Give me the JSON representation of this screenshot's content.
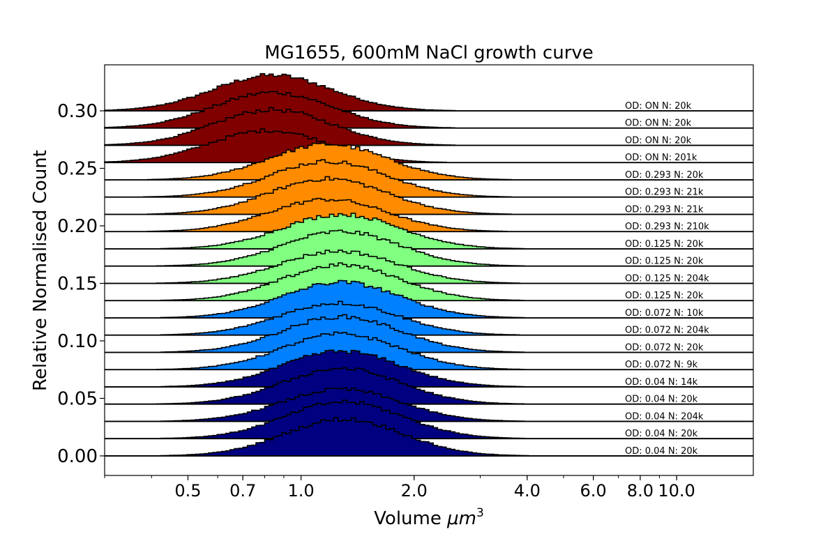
{
  "chart_data": {
    "type": "area",
    "title": "MG1655, 600mM NaCl growth curve",
    "xlabel": "Volume ",
    "xlabel_math": "μm",
    "xlabel_exp": "3",
    "ylabel": "Relative Normalised Count",
    "x_scale": "log",
    "xlim": [
      0.3,
      16
    ],
    "ylim": [
      -0.017,
      0.34
    ],
    "xticks": [
      {
        "value": 0.5,
        "label": "0.5"
      },
      {
        "value": 0.7,
        "label": "0.7"
      },
      {
        "value": 1.0,
        "label": "1.0"
      },
      {
        "value": 2.0,
        "label": "2.0"
      },
      {
        "value": 4.0,
        "label": "4.0"
      },
      {
        "value": 6.0,
        "label": "6.0"
      },
      {
        "value": 8.0,
        "label": "8.0"
      },
      {
        "value": 10.0,
        "label": "10.0"
      }
    ],
    "yticks": [
      {
        "value": 0.0,
        "label": "0.00"
      },
      {
        "value": 0.05,
        "label": "0.05"
      },
      {
        "value": 0.1,
        "label": "0.10"
      },
      {
        "value": 0.15,
        "label": "0.15"
      },
      {
        "value": 0.2,
        "label": "0.20"
      },
      {
        "value": 0.25,
        "label": "0.25"
      },
      {
        "value": 0.3,
        "label": "0.30"
      }
    ],
    "grid": false,
    "series": [
      {
        "label": "OD: 0.04 N: 20k",
        "baseline": 0.0,
        "mode": 1.3,
        "height": 0.032,
        "color": "#000080"
      },
      {
        "label": "OD: 0.04 N: 20k",
        "baseline": 0.015,
        "mode": 1.3,
        "height": 0.032,
        "color": "#000080"
      },
      {
        "label": "OD: 0.04 N: 204k",
        "baseline": 0.03,
        "mode": 1.28,
        "height": 0.028,
        "color": "#000080"
      },
      {
        "label": "OD: 0.04 N: 20k",
        "baseline": 0.045,
        "mode": 1.28,
        "height": 0.031,
        "color": "#000080"
      },
      {
        "label": "OD: 0.04 N: 14k",
        "baseline": 0.06,
        "mode": 1.28,
        "height": 0.031,
        "color": "#000080"
      },
      {
        "label": "OD: 0.072 N: 9k",
        "baseline": 0.075,
        "mode": 1.28,
        "height": 0.031,
        "color": "#0080ff"
      },
      {
        "label": "OD: 0.072 N: 20k",
        "baseline": 0.09,
        "mode": 1.28,
        "height": 0.031,
        "color": "#0080ff"
      },
      {
        "label": "OD: 0.072 N: 204k",
        "baseline": 0.105,
        "mode": 1.26,
        "height": 0.028,
        "color": "#0080ff"
      },
      {
        "label": "OD: 0.072 N: 10k",
        "baseline": 0.12,
        "mode": 1.28,
        "height": 0.031,
        "color": "#0080ff"
      },
      {
        "label": "OD: 0.125 N: 20k",
        "baseline": 0.135,
        "mode": 1.28,
        "height": 0.031,
        "color": "#80ff80"
      },
      {
        "label": "OD: 0.125 N: 204k",
        "baseline": 0.15,
        "mode": 1.26,
        "height": 0.028,
        "color": "#80ff80"
      },
      {
        "label": "OD: 0.125 N: 20k",
        "baseline": 0.165,
        "mode": 1.28,
        "height": 0.03,
        "color": "#80ff80"
      },
      {
        "label": "OD: 0.125 N: 20k",
        "baseline": 0.18,
        "mode": 1.28,
        "height": 0.03,
        "color": "#80ff80"
      },
      {
        "label": "OD: 0.293 N: 210k",
        "baseline": 0.195,
        "mode": 1.18,
        "height": 0.028,
        "color": "#ff8c00"
      },
      {
        "label": "OD: 0.293 N: 21k",
        "baseline": 0.21,
        "mode": 1.18,
        "height": 0.031,
        "color": "#ff8c00"
      },
      {
        "label": "OD: 0.293 N: 21k",
        "baseline": 0.225,
        "mode": 1.18,
        "height": 0.031,
        "color": "#ff8c00"
      },
      {
        "label": "OD: 0.293 N: 20k",
        "baseline": 0.24,
        "mode": 1.18,
        "height": 0.031,
        "color": "#ff8c00"
      },
      {
        "label": "OD: ON N: 201k",
        "baseline": 0.255,
        "mode": 0.82,
        "height": 0.028,
        "color": "#800000"
      },
      {
        "label": "OD: ON N: 20k",
        "baseline": 0.27,
        "mode": 0.84,
        "height": 0.031,
        "color": "#800000"
      },
      {
        "label": "OD: ON N: 20k",
        "baseline": 0.285,
        "mode": 0.84,
        "height": 0.031,
        "color": "#800000"
      },
      {
        "label": "OD: ON N: 20k",
        "baseline": 0.3,
        "mode": 0.84,
        "height": 0.031,
        "color": "#800000"
      }
    ]
  }
}
